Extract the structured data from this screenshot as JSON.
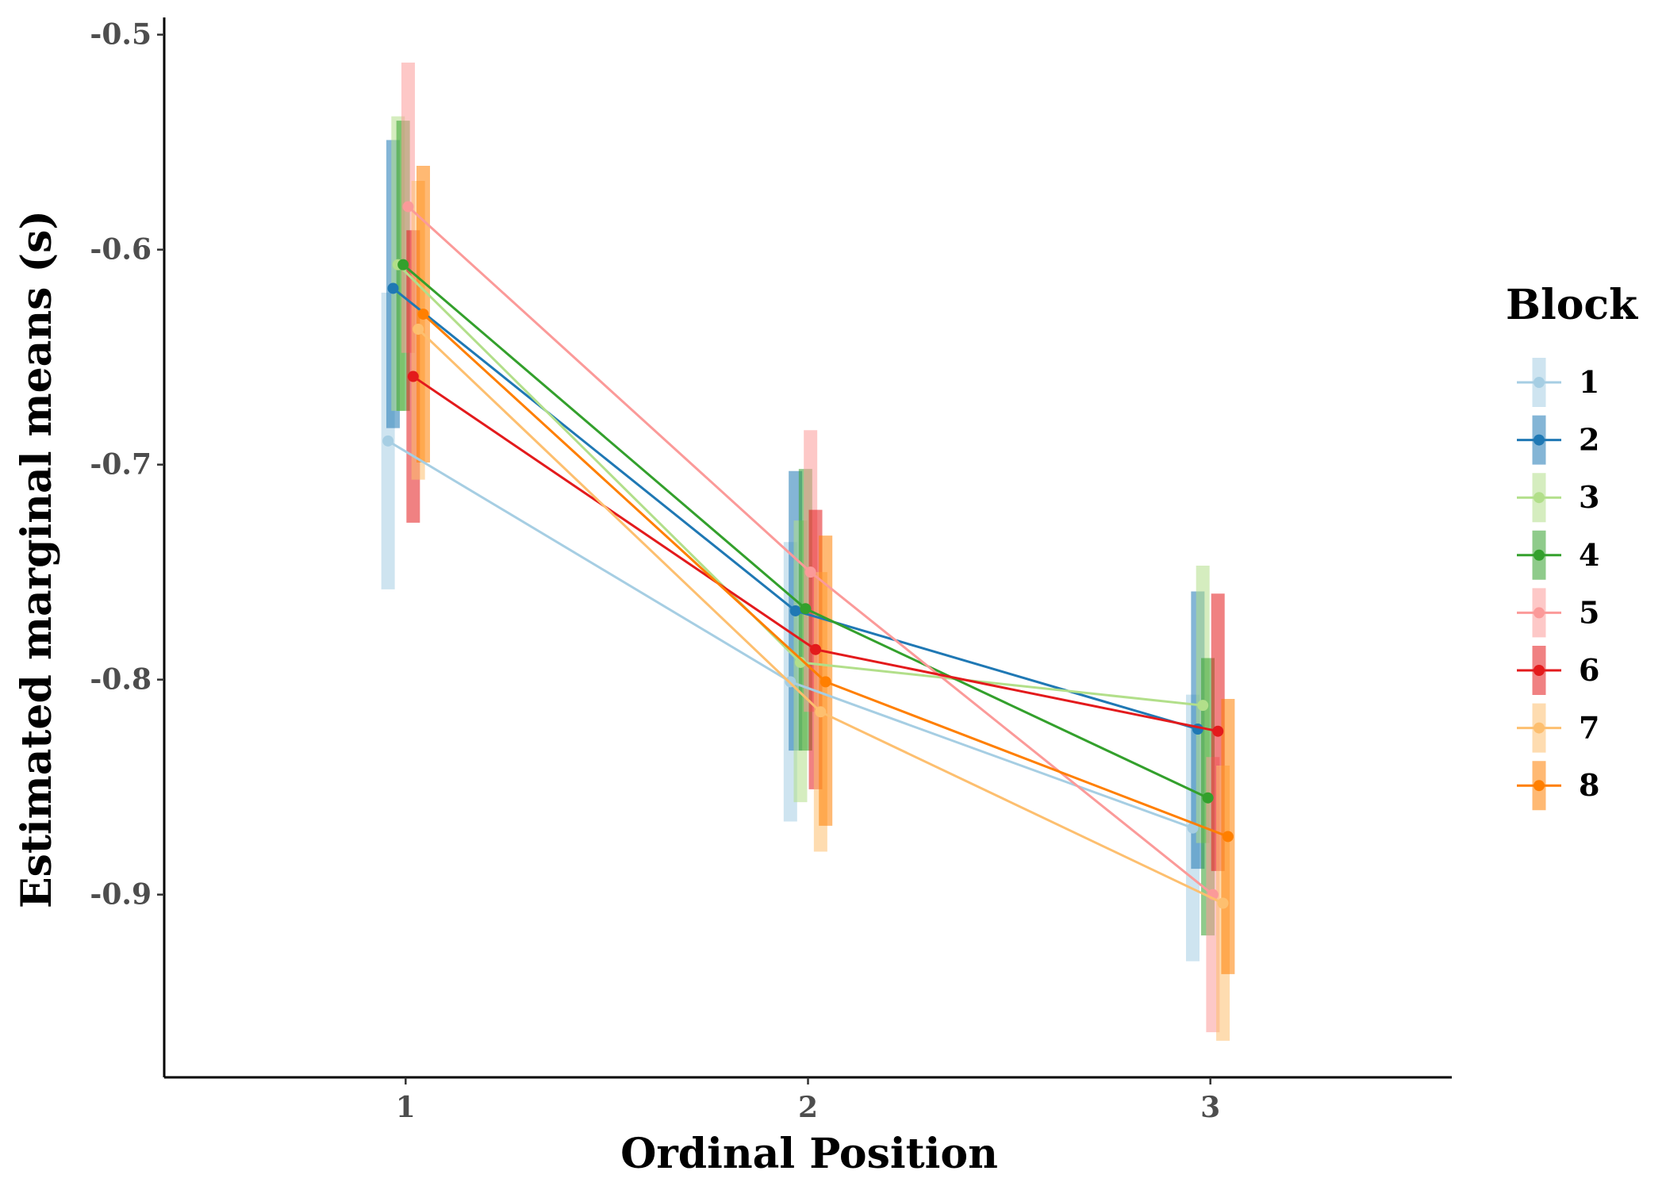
{
  "chart_data": {
    "type": "line",
    "title": "",
    "xlabel": "Ordinal Position",
    "ylabel": "Estimated marginal means (s)",
    "x": [
      1,
      2,
      3
    ],
    "xlim": [
      0.4,
      3.6
    ],
    "ylim": [
      -0.985,
      -0.492
    ],
    "yticks": [
      -0.5,
      -0.6,
      -0.7,
      -0.8,
      -0.9
    ],
    "ytick_labels": [
      "-0.5",
      "-0.6",
      "-0.7",
      "-0.8",
      "-0.9"
    ],
    "xtick_labels": [
      "1",
      "2",
      "3"
    ],
    "grid": false,
    "legend": {
      "title": "Block",
      "placement": "right"
    },
    "error_bars": "confidence interval",
    "series": [
      {
        "name": "1",
        "color": "#a6cee3",
        "values": [
          -0.689,
          -0.801,
          -0.869
        ],
        "lower": [
          -0.758,
          -0.866,
          -0.931
        ],
        "upper": [
          -0.62,
          -0.736,
          -0.807
        ]
      },
      {
        "name": "2",
        "color": "#1f78b4",
        "values": [
          -0.618,
          -0.768,
          -0.823
        ],
        "lower": [
          -0.683,
          -0.833,
          -0.888
        ],
        "upper": [
          -0.549,
          -0.703,
          -0.759
        ]
      },
      {
        "name": "3",
        "color": "#b2df8a",
        "values": [
          -0.607,
          -0.792,
          -0.812
        ],
        "lower": [
          -0.675,
          -0.857,
          -0.876
        ],
        "upper": [
          -0.538,
          -0.726,
          -0.747
        ]
      },
      {
        "name": "4",
        "color": "#33a02c",
        "values": [
          -0.607,
          -0.767,
          -0.855
        ],
        "lower": [
          -0.675,
          -0.833,
          -0.919
        ],
        "upper": [
          -0.54,
          -0.702,
          -0.79
        ]
      },
      {
        "name": "5",
        "color": "#fb9a99",
        "values": [
          -0.58,
          -0.75,
          -0.9
        ],
        "lower": [
          -0.648,
          -0.815,
          -0.964
        ],
        "upper": [
          -0.513,
          -0.684,
          -0.836
        ]
      },
      {
        "name": "6",
        "color": "#e31a1c",
        "values": [
          -0.659,
          -0.786,
          -0.824
        ],
        "lower": [
          -0.727,
          -0.851,
          -0.889
        ],
        "upper": [
          -0.591,
          -0.721,
          -0.76
        ]
      },
      {
        "name": "7",
        "color": "#fdbf6f",
        "values": [
          -0.637,
          -0.815,
          -0.904
        ],
        "lower": [
          -0.707,
          -0.88,
          -0.968
        ],
        "upper": [
          -0.568,
          -0.75,
          -0.84
        ]
      },
      {
        "name": "8",
        "color": "#ff7f00",
        "values": [
          -0.63,
          -0.801,
          -0.873
        ],
        "lower": [
          -0.699,
          -0.868,
          -0.937
        ],
        "upper": [
          -0.561,
          -0.733,
          -0.809
        ]
      }
    ]
  }
}
